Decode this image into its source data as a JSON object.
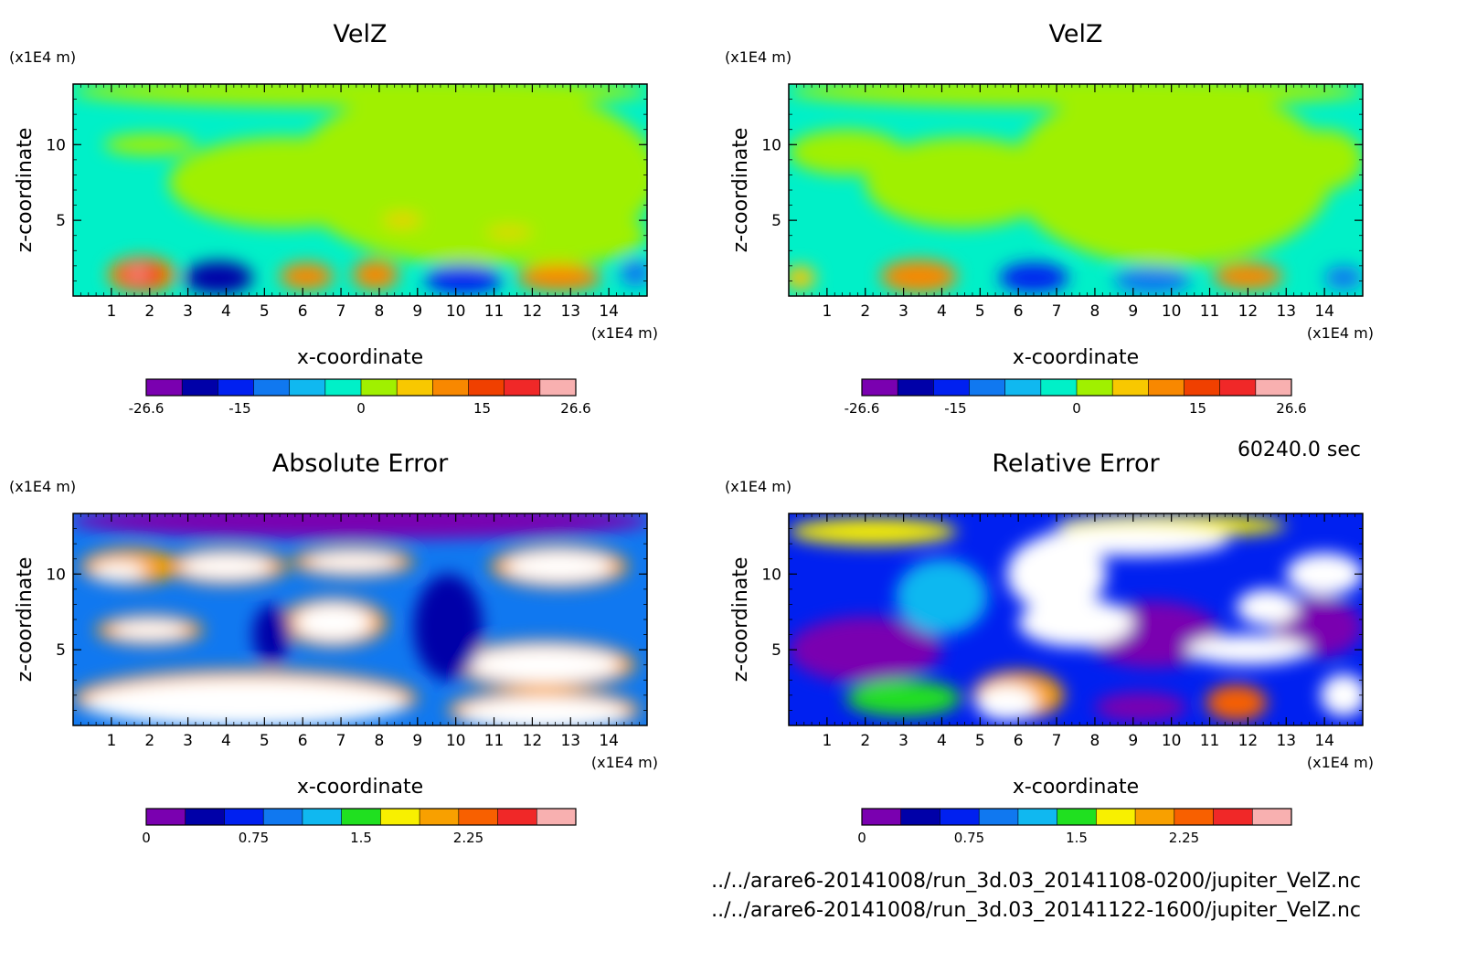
{
  "time_label": "60240.0 sec",
  "files": [
    "../../arare6-20141008/run_3d.03_20141108-0200/jupiter_VelZ.nc",
    "../../arare6-20141008/run_3d.03_20141122-1600/jupiter_VelZ.nc"
  ],
  "chart_data": [
    {
      "type": "heatmap",
      "title": "VelZ",
      "xlabel": "x-coordinate",
      "ylabel": "z-coordinate",
      "x_unit": "(x1E4 m)",
      "y_unit": "(x1E4 m)",
      "x_ticks": [
        "1",
        "2",
        "3",
        "4",
        "5",
        "6",
        "7",
        "8",
        "9",
        "10",
        "11",
        "12",
        "13",
        "14"
      ],
      "y_ticks": [
        "5",
        "10"
      ],
      "xlim": [
        0,
        15
      ],
      "ylim": [
        0,
        14
      ],
      "colorbar": {
        "range": [
          -26.6,
          26.6
        ],
        "tick_labels": [
          "-26.6",
          "-15",
          "0",
          "15",
          "26.6"
        ],
        "tick_values": [
          -26.6,
          -15,
          0,
          15,
          26.6
        ],
        "colors": [
          "#7a00b0",
          "#0000a8",
          "#0020f0",
          "#1078f0",
          "#10b8f0",
          "#00f0c8",
          "#a0f000",
          "#f8c800",
          "#f88800",
          "#f04000",
          "#f02828",
          "#f8b0b0"
        ]
      },
      "background": "#00f0c8",
      "features": [
        {
          "v": 3,
          "x": 10.5,
          "z": 8,
          "rx": 4.8,
          "rz": 6
        },
        {
          "v": 3,
          "x": 5.5,
          "z": 7.5,
          "rx": 3,
          "rz": 3
        },
        {
          "v": 3,
          "x": 2,
          "z": 10,
          "rx": 1.2,
          "rz": 0.7
        },
        {
          "v": 3,
          "x": 7.5,
          "z": 13.5,
          "rx": 7.5,
          "rz": 1
        },
        {
          "v": 3,
          "x": 12.5,
          "z": 4,
          "rx": 2.5,
          "rz": 2
        },
        {
          "v": 5,
          "x": 8.6,
          "z": 5,
          "rx": 0.5,
          "rz": 0.4
        },
        {
          "v": 5,
          "x": 11.4,
          "z": 4.2,
          "rx": 0.6,
          "rz": 0.3
        },
        {
          "v": 10,
          "x": 1.8,
          "z": 1.4,
          "rx": 0.9,
          "rz": 1.2
        },
        {
          "v": 15,
          "x": 1.8,
          "z": 1.4,
          "rx": 0.6,
          "rz": 0.8
        },
        {
          "v": 24,
          "x": 1.7,
          "z": 1.5,
          "rx": 0.2,
          "rz": 0.3
        },
        {
          "v": -20,
          "x": 3.8,
          "z": 1.2,
          "rx": 0.9,
          "rz": 1.1
        },
        {
          "v": 10,
          "x": 6.1,
          "z": 1.3,
          "rx": 0.7,
          "rz": 0.9
        },
        {
          "v": 10,
          "x": 7.9,
          "z": 1.4,
          "rx": 0.6,
          "rz": 1.0
        },
        {
          "v": -15,
          "x": 10.2,
          "z": 1.1,
          "rx": 1.0,
          "rz": 1.0
        },
        {
          "v": 10,
          "x": 12.7,
          "z": 1.2,
          "rx": 1.1,
          "rz": 0.9
        },
        {
          "v": -10,
          "x": 14.7,
          "z": 1.5,
          "rx": 0.4,
          "rz": 0.9
        }
      ]
    },
    {
      "type": "heatmap",
      "title": "VelZ",
      "xlabel": "x-coordinate",
      "ylabel": "z-coordinate",
      "x_unit": "(x1E4 m)",
      "y_unit": "(x1E4 m)",
      "x_ticks": [
        "1",
        "2",
        "3",
        "4",
        "5",
        "6",
        "7",
        "8",
        "9",
        "10",
        "11",
        "12",
        "13",
        "14"
      ],
      "y_ticks": [
        "5",
        "10"
      ],
      "xlim": [
        0,
        15
      ],
      "ylim": [
        0,
        14
      ],
      "colorbar": {
        "range": [
          -26.6,
          26.6
        ],
        "tick_labels": [
          "-26.6",
          "-15",
          "0",
          "15",
          "26.6"
        ],
        "tick_values": [
          -26.6,
          -15,
          0,
          15,
          26.6
        ],
        "colors": [
          "#7a00b0",
          "#0000a8",
          "#0020f0",
          "#1078f0",
          "#10b8f0",
          "#00f0c8",
          "#a0f000",
          "#f8c800",
          "#f88800",
          "#f04000",
          "#f02828",
          "#f8b0b0"
        ]
      },
      "background": "#00f0c8",
      "features": [
        {
          "v": 3,
          "x": 10,
          "z": 8,
          "rx": 4.2,
          "rz": 6
        },
        {
          "v": 3,
          "x": 4.5,
          "z": 7.5,
          "rx": 2.5,
          "rz": 3
        },
        {
          "v": 3,
          "x": 1.5,
          "z": 9.5,
          "rx": 1.5,
          "rz": 1.5
        },
        {
          "v": 3,
          "x": 7.5,
          "z": 13.5,
          "rx": 7.5,
          "rz": 1
        },
        {
          "v": 3,
          "x": 14,
          "z": 9,
          "rx": 1,
          "rz": 2
        },
        {
          "v": 8,
          "x": 0.3,
          "z": 1.2,
          "rx": 0.4,
          "rz": 0.8
        },
        {
          "v": 10,
          "x": 3.4,
          "z": 1.3,
          "rx": 1.0,
          "rz": 1.1
        },
        {
          "v": -15,
          "x": 6.4,
          "z": 1.2,
          "rx": 0.9,
          "rz": 1.0
        },
        {
          "v": -10,
          "x": 9.5,
          "z": 1.0,
          "rx": 1.0,
          "rz": 0.9
        },
        {
          "v": 12,
          "x": 12.0,
          "z": 1.3,
          "rx": 0.9,
          "rz": 0.9
        },
        {
          "v": -10,
          "x": 14.5,
          "z": 1.2,
          "rx": 0.5,
          "rz": 0.8
        }
      ]
    },
    {
      "type": "heatmap",
      "title": "Absolute Error",
      "xlabel": "x-coordinate",
      "ylabel": "z-coordinate",
      "x_unit": "(x1E4 m)",
      "y_unit": "(x1E4 m)",
      "x_ticks": [
        "1",
        "2",
        "3",
        "4",
        "5",
        "6",
        "7",
        "8",
        "9",
        "10",
        "11",
        "12",
        "13",
        "14"
      ],
      "y_ticks": [
        "5",
        "10"
      ],
      "xlim": [
        0,
        15
      ],
      "ylim": [
        0,
        14
      ],
      "colorbar": {
        "range": [
          0,
          3
        ],
        "tick_labels": [
          "0",
          "0.75",
          "1.5",
          "2.25"
        ],
        "tick_values": [
          0,
          0.75,
          1.5,
          2.25
        ],
        "colors": [
          "#7a00b0",
          "#0000a8",
          "#0020f0",
          "#1078f0",
          "#10b8f0",
          "#20e020",
          "#f8f000",
          "#f8a000",
          "#f86000",
          "#f02828",
          "#f8b0b0"
        ]
      },
      "background": "#1078f0",
      "features": [
        {
          "v": 0.1,
          "x": 7.5,
          "z": 13.5,
          "rx": 7.6,
          "rz": 1.2
        },
        {
          "v": 2.0,
          "x": 1.5,
          "z": 10.5,
          "rx": 1.3,
          "rz": 1.2
        },
        {
          "v": 3.2,
          "x": 1.2,
          "z": 10.2,
          "rx": 0.7,
          "rz": 0.6
        },
        {
          "v": 2.0,
          "x": 4.0,
          "z": 10.5,
          "rx": 1.6,
          "rz": 1.2
        },
        {
          "v": 3.2,
          "x": 4.0,
          "z": 10.5,
          "rx": 1.2,
          "rz": 0.8
        },
        {
          "v": 2.0,
          "x": 7.3,
          "z": 10.8,
          "rx": 1.6,
          "rz": 1.0
        },
        {
          "v": 3.2,
          "x": 7.3,
          "z": 10.8,
          "rx": 1.2,
          "rz": 0.6
        },
        {
          "v": 2.0,
          "x": 12.7,
          "z": 10.5,
          "rx": 1.8,
          "rz": 1.4
        },
        {
          "v": 3.2,
          "x": 12.7,
          "z": 10.5,
          "rx": 1.4,
          "rz": 1.0
        },
        {
          "v": 2.0,
          "x": 2.0,
          "z": 6.3,
          "rx": 1.4,
          "rz": 1.0
        },
        {
          "v": 3.2,
          "x": 2.0,
          "z": 6.3,
          "rx": 1.0,
          "rz": 0.6
        },
        {
          "v": 2.0,
          "x": 6.8,
          "z": 6.8,
          "rx": 1.4,
          "rz": 1.6
        },
        {
          "v": 3.2,
          "x": 6.8,
          "z": 6.8,
          "rx": 1.0,
          "rz": 1.2
        },
        {
          "v": 2.0,
          "x": 12.3,
          "z": 4.0,
          "rx": 2.4,
          "rz": 1.6
        },
        {
          "v": 3.2,
          "x": 12.3,
          "z": 4.0,
          "rx": 2.0,
          "rz": 1.2
        },
        {
          "v": 2.0,
          "x": 4.5,
          "z": 1.8,
          "rx": 4.5,
          "rz": 1.9
        },
        {
          "v": 3.2,
          "x": 4.5,
          "z": 1.5,
          "rx": 4.2,
          "rz": 1.6
        },
        {
          "v": 2.0,
          "x": 12.3,
          "z": 1.0,
          "rx": 2.5,
          "rz": 1.4
        },
        {
          "v": 3.2,
          "x": 12.3,
          "z": 0.8,
          "rx": 2.2,
          "rz": 1.1
        },
        {
          "v": 0.4,
          "x": 9.8,
          "z": 6.5,
          "rx": 0.9,
          "rz": 3.5
        },
        {
          "v": 0.4,
          "x": 5.2,
          "z": 6.0,
          "rx": 0.5,
          "rz": 2.0
        }
      ]
    },
    {
      "type": "heatmap",
      "title": "Relative Error",
      "xlabel": "x-coordinate",
      "ylabel": "z-coordinate",
      "x_unit": "(x1E4 m)",
      "y_unit": "(x1E4 m)",
      "x_ticks": [
        "1",
        "2",
        "3",
        "4",
        "5",
        "6",
        "7",
        "8",
        "9",
        "10",
        "11",
        "12",
        "13",
        "14"
      ],
      "y_ticks": [
        "5",
        "10"
      ],
      "xlim": [
        0,
        15
      ],
      "ylim": [
        0,
        14
      ],
      "colorbar": {
        "range": [
          0,
          3
        ],
        "tick_labels": [
          "0",
          "0.75",
          "1.5",
          "2.25"
        ],
        "tick_values": [
          0,
          0.75,
          1.5,
          2.25
        ],
        "colors": [
          "#7a00b0",
          "#0000a8",
          "#0020f0",
          "#1078f0",
          "#10b8f0",
          "#20e020",
          "#f8f000",
          "#f8a000",
          "#f86000",
          "#f02828",
          "#f8b0b0"
        ]
      },
      "background": "#0020f0",
      "features": [
        {
          "v": 0.1,
          "x": 2.0,
          "z": 5.0,
          "rx": 2.0,
          "rz": 2.2
        },
        {
          "v": 0.1,
          "x": 9.5,
          "z": 6.0,
          "rx": 1.8,
          "rz": 2.2
        },
        {
          "v": 0.1,
          "x": 13.8,
          "z": 6.5,
          "rx": 1.2,
          "rz": 2.0
        },
        {
          "v": 1.2,
          "x": 4.0,
          "z": 8.5,
          "rx": 1.2,
          "rz": 2.5
        },
        {
          "v": 1.9,
          "x": 2.2,
          "z": 12.8,
          "rx": 2.2,
          "rz": 0.9
        },
        {
          "v": 1.9,
          "x": 10.0,
          "z": 13.2,
          "rx": 3.0,
          "rz": 0.8
        },
        {
          "v": 3.2,
          "x": 7.0,
          "z": 10.0,
          "rx": 1.3,
          "rz": 2.5
        },
        {
          "v": 3.2,
          "x": 7.5,
          "z": 6.8,
          "rx": 1.5,
          "rz": 1.6
        },
        {
          "v": 3.2,
          "x": 9.0,
          "z": 12.2,
          "rx": 2.5,
          "rz": 1.0
        },
        {
          "v": 3.2,
          "x": 12.5,
          "z": 7.8,
          "rx": 0.8,
          "rz": 1.2
        },
        {
          "v": 3.2,
          "x": 14.0,
          "z": 10.0,
          "rx": 1.0,
          "rz": 1.4
        },
        {
          "v": 3.2,
          "x": 12.0,
          "z": 5.0,
          "rx": 1.6,
          "rz": 1.0
        },
        {
          "v": 2.0,
          "x": 6.0,
          "z": 2.0,
          "rx": 1.2,
          "rz": 1.6
        },
        {
          "v": 3.2,
          "x": 5.7,
          "z": 1.5,
          "rx": 0.8,
          "rz": 1.2
        },
        {
          "v": 1.6,
          "x": 3.0,
          "z": 1.8,
          "rx": 1.5,
          "rz": 1.2
        },
        {
          "v": 0.1,
          "x": 9.2,
          "z": 1.2,
          "rx": 1.2,
          "rz": 1.0
        },
        {
          "v": 2.4,
          "x": 11.7,
          "z": 1.5,
          "rx": 0.8,
          "rz": 1.2
        },
        {
          "v": 3.2,
          "x": 14.5,
          "z": 2.0,
          "rx": 0.6,
          "rz": 1.4
        }
      ]
    }
  ]
}
